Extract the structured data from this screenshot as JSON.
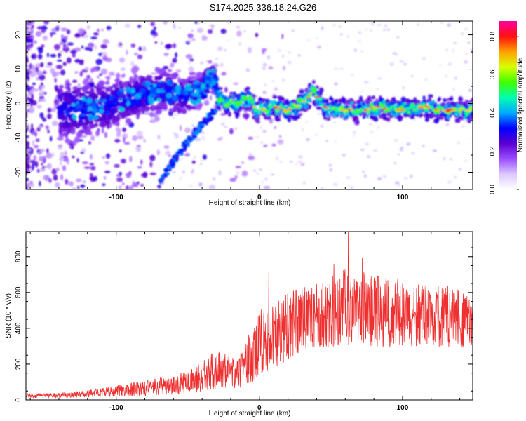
{
  "title": "S174.2025.336.18.24.G26",
  "chart_data": [
    {
      "type": "heatmap",
      "name": "spectrogram",
      "xlabel": "Height of straight line (km)",
      "ylabel": "Frequency (Hz)",
      "xlim": [
        -163,
        149
      ],
      "ylim": [
        -25,
        24
      ],
      "xticks": [
        -100,
        0,
        100
      ],
      "yticks": [
        20,
        10,
        0,
        -10,
        -20
      ],
      "colorbar": {
        "label": "Normalized spectral amplitude",
        "range": [
          0.0,
          0.88
        ],
        "ticks": [
          0.0,
          0.2,
          0.4,
          0.6,
          0.8
        ],
        "tick_labels": [
          "0.0",
          "0.2",
          "0.4",
          "0.6",
          "0.8"
        ],
        "colormap": [
          "#ffffff",
          "#dcc8ff",
          "#9b4dff",
          "#5a00d0",
          "#0000ff",
          "#00aaff",
          "#00ffb0",
          "#40ff00",
          "#d8ff00",
          "#ffa000",
          "#ff1010",
          "#ff00a0"
        ]
      },
      "ridge": {
        "description": "dominant frequency trace",
        "x": [
          -130,
          -110,
          -95,
          -80,
          -65,
          -55,
          -45,
          -38,
          -32,
          -28,
          -22,
          -15,
          -8,
          -2,
          0,
          10,
          20,
          30,
          38,
          45,
          55,
          70,
          85,
          100,
          115,
          130,
          148
        ],
        "y": [
          -2,
          -1,
          1,
          3,
          4,
          2,
          3,
          5,
          8,
          1,
          0,
          0,
          2,
          -2,
          -2,
          -1,
          -2,
          0,
          4,
          -1,
          -2,
          -2,
          -1,
          -2,
          -1,
          -2,
          -2
        ]
      },
      "descending_branch": {
        "x": [
          -70,
          -60,
          -50,
          -40,
          -33,
          -28
        ],
        "y": [
          -23,
          -17,
          -11,
          -6,
          -3,
          0
        ]
      }
    },
    {
      "type": "line",
      "name": "snr",
      "xlabel": "Height of straight line (km)",
      "ylabel": "SNR (10 * v/v)",
      "xlim": [
        -163,
        149
      ],
      "ylim": [
        0,
        940
      ],
      "xticks": [
        -100,
        0,
        100
      ],
      "yticks": [
        0,
        200,
        400,
        600,
        800
      ],
      "color": "#ee3030",
      "envelope": {
        "x": [
          -163,
          -140,
          -120,
          -100,
          -80,
          -60,
          -45,
          -35,
          -25,
          -15,
          -5,
          0,
          10,
          20,
          30,
          40,
          50,
          60,
          70,
          80,
          90,
          100,
          110,
          120,
          130,
          140,
          149
        ],
        "low": [
          12,
          12,
          15,
          20,
          25,
          30,
          40,
          50,
          70,
          60,
          100,
          130,
          180,
          220,
          280,
          300,
          290,
          300,
          300,
          300,
          290,
          300,
          300,
          300,
          290,
          290,
          300
        ],
        "high": [
          35,
          40,
          55,
          80,
          110,
          140,
          180,
          260,
          280,
          250,
          400,
          500,
          560,
          600,
          650,
          680,
          700,
          750,
          720,
          700,
          680,
          680,
          650,
          640,
          640,
          620,
          560
        ]
      },
      "peaks": [
        {
          "x": 6.5,
          "y": 720
        },
        {
          "x": 52,
          "y": 760
        },
        {
          "x": 62,
          "y": 940
        },
        {
          "x": 72,
          "y": 790
        }
      ]
    }
  ]
}
